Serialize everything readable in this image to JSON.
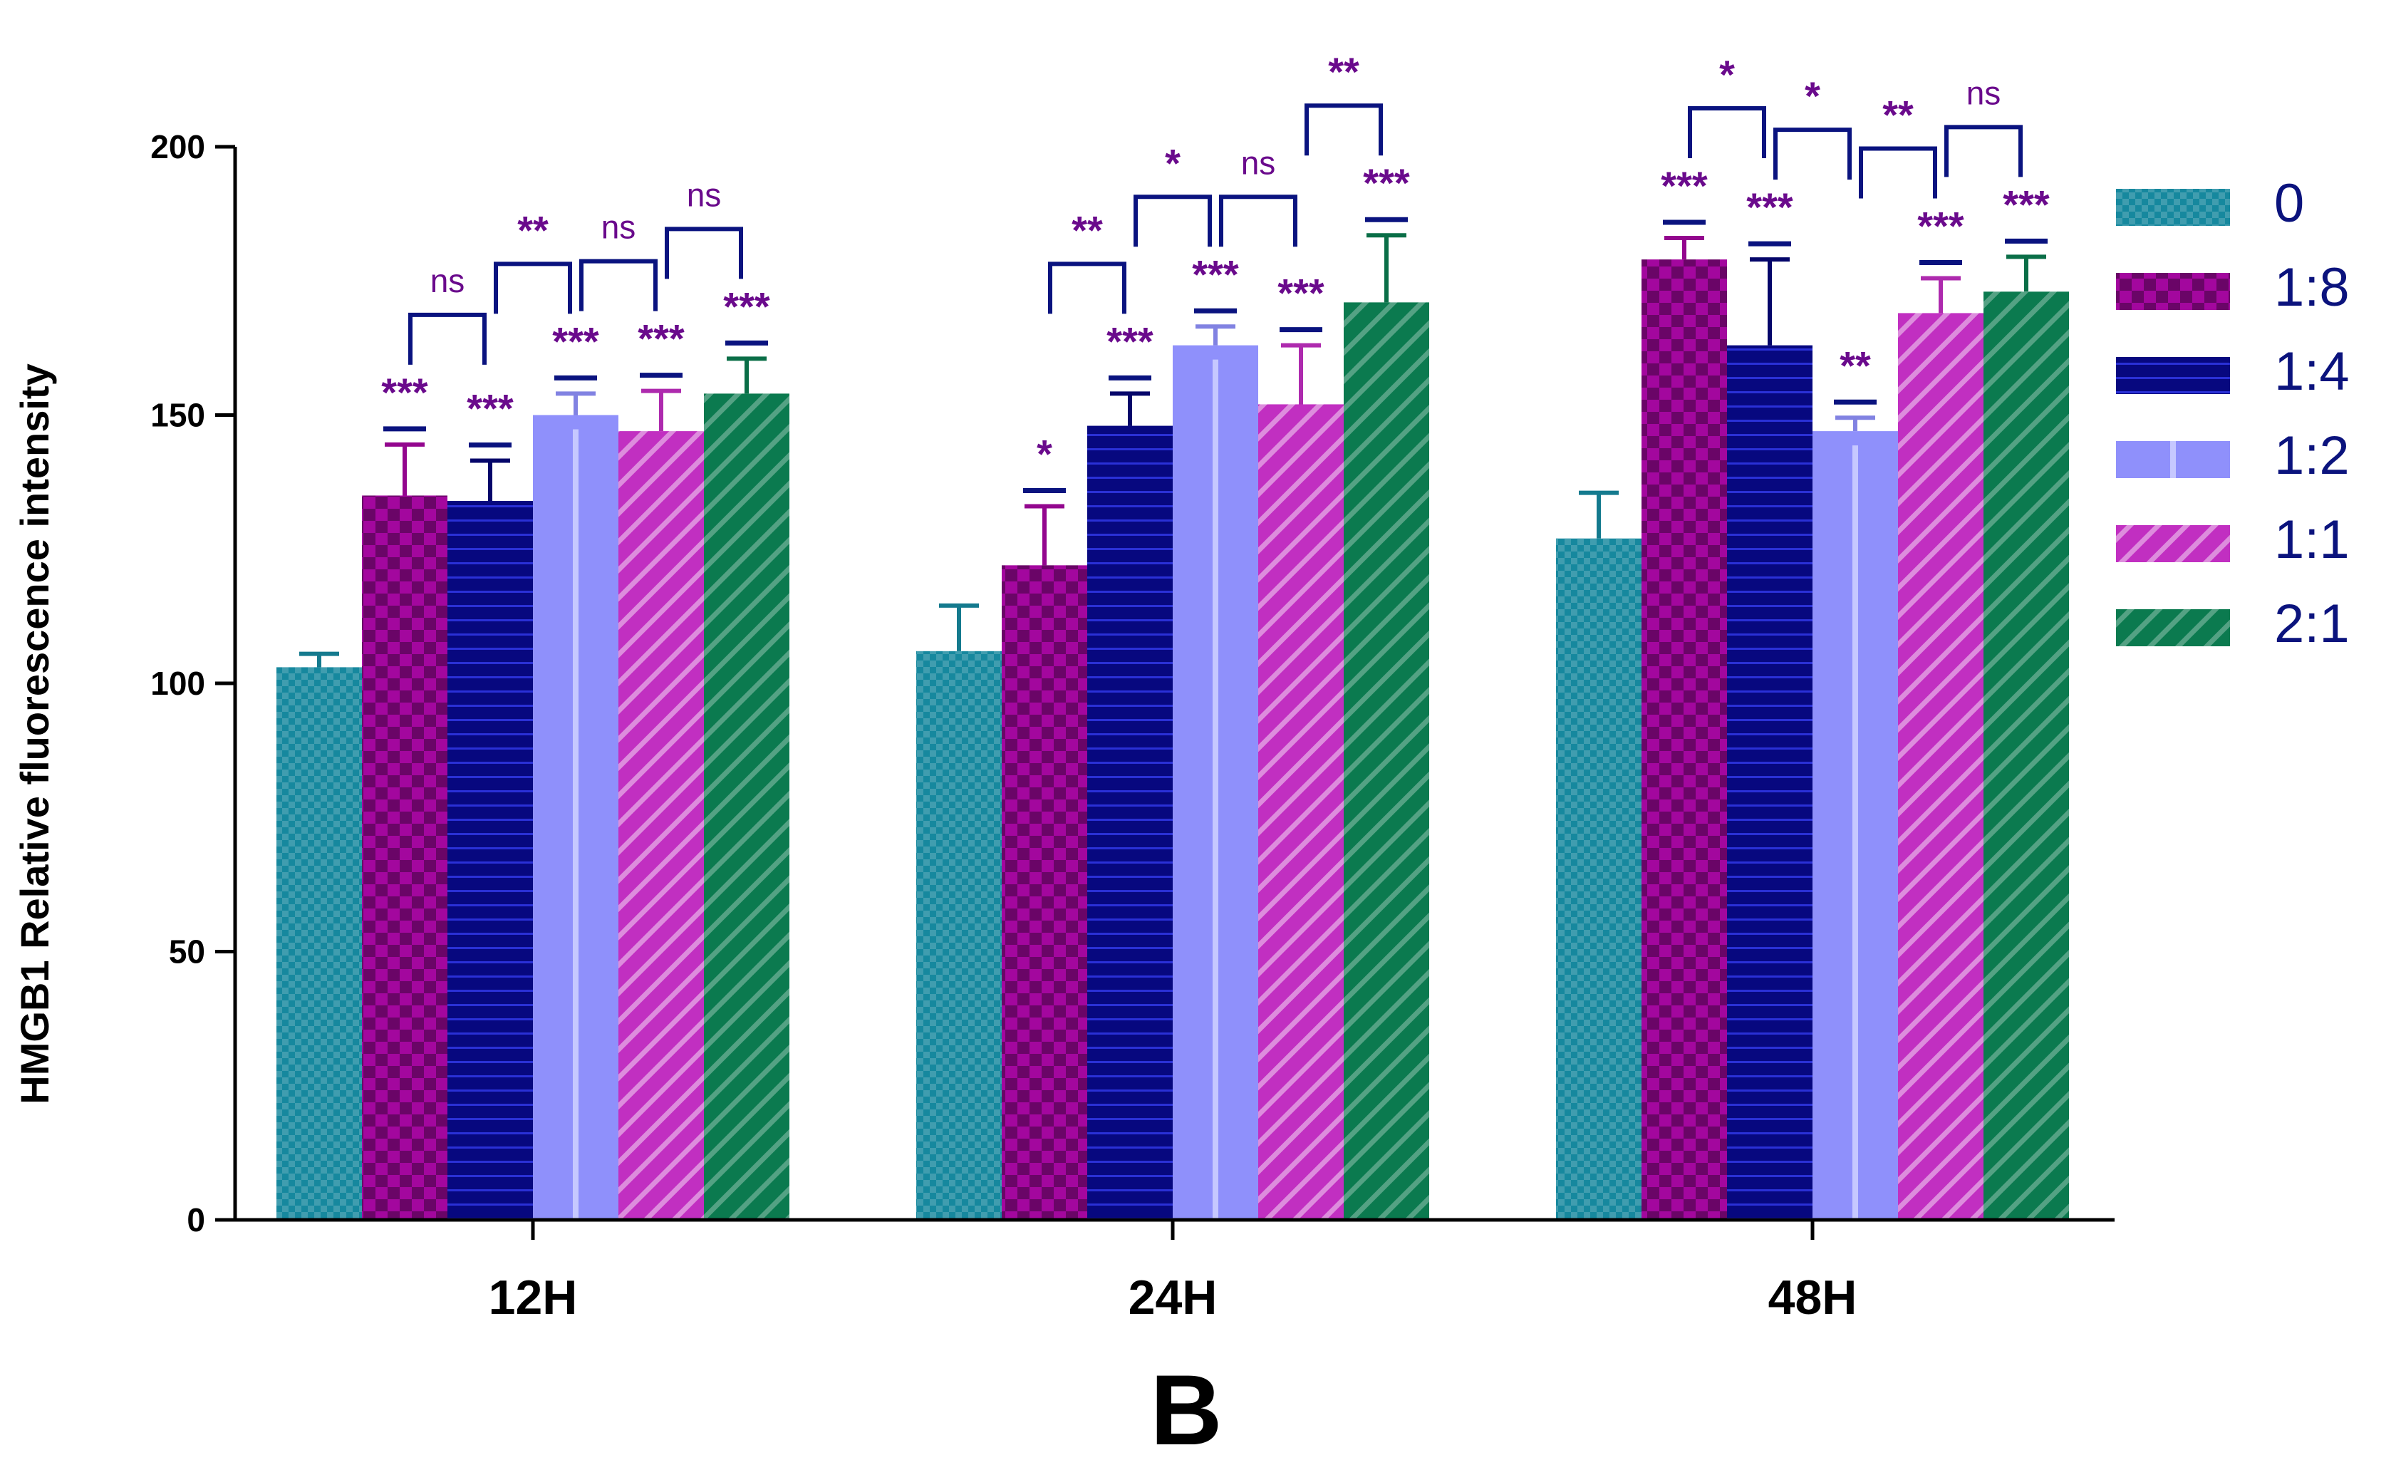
{
  "chart_data": {
    "type": "bar",
    "title": "",
    "panel_label": "B",
    "ylabel": "HMGB1 Relative fluorescence intensity",
    "xlabel": "",
    "ylim": [
      0,
      200
    ],
    "yticks": [
      0,
      50,
      100,
      150,
      200
    ],
    "categories": [
      "12H",
      "24H",
      "48H"
    ],
    "legend_position": "right",
    "series": [
      {
        "name": "0",
        "color": "#16889e",
        "pattern": "checker-fine",
        "values": [
          103,
          106,
          127
        ],
        "errors": [
          2.5,
          8.5,
          8.5
        ]
      },
      {
        "name": "1:8",
        "color": "#a3079e",
        "pattern": "checker",
        "values": [
          135,
          122,
          179
        ],
        "errors": [
          9.5,
          11,
          4
        ]
      },
      {
        "name": "1:4",
        "color": "#07087f",
        "pattern": "hlines",
        "values": [
          134,
          148,
          163
        ],
        "errors": [
          7.5,
          6,
          16
        ]
      },
      {
        "name": "1:2",
        "color": "#8f90fb",
        "pattern": "vline",
        "values": [
          150,
          163,
          147
        ],
        "errors": [
          4,
          3.5,
          2.5
        ]
      },
      {
        "name": "1:1",
        "color": "#c12fc1",
        "pattern": "diag-light",
        "values": [
          147,
          152,
          169
        ],
        "errors": [
          7.5,
          11,
          6.5
        ]
      },
      {
        "name": "2:1",
        "color": "#0b7a4f",
        "pattern": "diag",
        "values": [
          154,
          171,
          173
        ],
        "errors": [
          6.5,
          12.5,
          6.5
        ]
      }
    ],
    "bar_marks": [
      [
        "",
        "***",
        "***",
        "***",
        "***",
        "***"
      ],
      [
        "",
        "*",
        "***",
        "***",
        "***",
        "***"
      ],
      [
        "",
        "***",
        "***",
        "**",
        "***",
        "***"
      ]
    ],
    "brackets": [
      [
        {
          "from": 1,
          "to": 2,
          "label": "ns"
        },
        {
          "from": 2,
          "to": 3,
          "label": "**"
        },
        {
          "from": 3,
          "to": 4,
          "label": "ns"
        },
        {
          "from": 4,
          "to": 5,
          "label": "ns"
        }
      ],
      [
        {
          "from": 1,
          "to": 2,
          "label": "**"
        },
        {
          "from": 2,
          "to": 3,
          "label": "*"
        },
        {
          "from": 3,
          "to": 4,
          "label": "ns"
        },
        {
          "from": 4,
          "to": 5,
          "label": "**"
        }
      ],
      [
        {
          "from": 1,
          "to": 2,
          "label": "*"
        },
        {
          "from": 2,
          "to": 3,
          "label": "*"
        },
        {
          "from": 3,
          "to": 4,
          "label": "**"
        },
        {
          "from": 4,
          "to": 5,
          "label": "ns"
        }
      ]
    ],
    "annotation_color": "#6a0a8c",
    "bracket_color": "#0a137f",
    "legend_text_color": "#0b137d"
  }
}
